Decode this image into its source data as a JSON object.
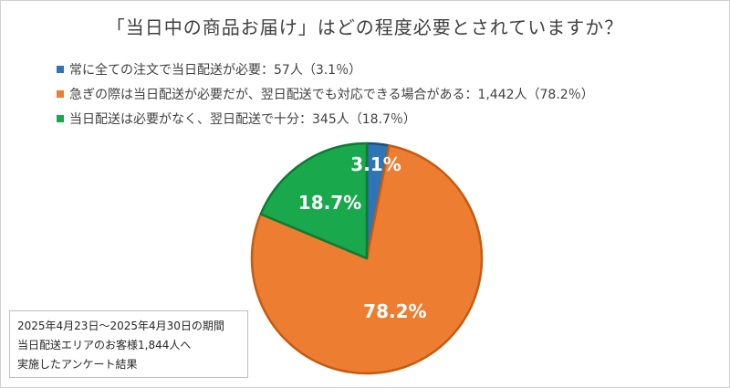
{
  "title": "「当日中の商品お届け」はどの程度必要とされていますか？",
  "note": {
    "line1": "2025年4月23日～2025年4月30日の期間",
    "line2": "当日配送エリアのお客様1,844人へ",
    "line3": "実施したアンケート結果"
  },
  "legend": {
    "items": [
      {
        "label": "常に全ての注文で当日配送が必要：57人（3.1％）",
        "color": "#2e75b6"
      },
      {
        "label": "急ぎの際は当日配送が必要だが、翌日配送でも対応できる場合がある：1,442人（78.2％）",
        "color": "#ed7d31"
      },
      {
        "label": "当日配送は必要がなく、翌日配送で十分：345人（18.7％）",
        "color": "#1aa84c"
      }
    ]
  },
  "chart_data": {
    "type": "pie",
    "categories": [
      "常に全ての注文で当日配送が必要",
      "急ぎの際は当日配送が必要だが、翌日配送でも対応できる場合がある",
      "当日配送は必要がなく、翌日配送で十分"
    ],
    "values": [
      57,
      1442,
      345
    ],
    "percentages": [
      3.1,
      78.2,
      18.7
    ],
    "data_labels": [
      "3.1%",
      "78.2%",
      "18.7%"
    ],
    "colors": [
      "#2e75b6",
      "#ed7d31",
      "#1aa84c"
    ],
    "border_colors": [
      "#1f4e79",
      "#c55a11",
      "#0e7a34"
    ],
    "legend_position": "top"
  }
}
